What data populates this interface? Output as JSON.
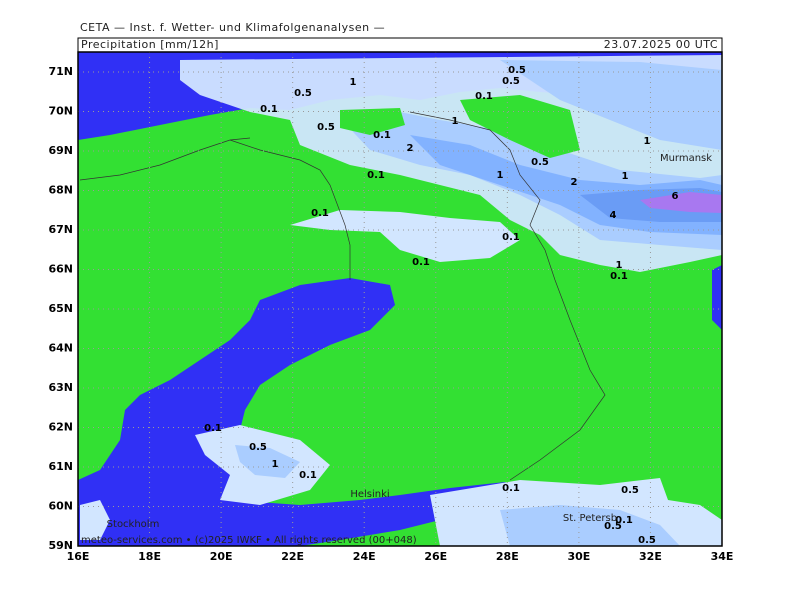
{
  "header": {
    "title": "CETA — Inst. f. Wetter- und Klimafolgenanalysen —",
    "subtitle": "Precipitation [mm/12h]",
    "date": "23.07.2025 00 UTC"
  },
  "footer": "meteo-services.com • (c)2025 IWKF • All rights reserved (00+048)",
  "lat_ticks": [
    {
      "value": 71,
      "label": "71N"
    },
    {
      "value": 70,
      "label": "70N"
    },
    {
      "value": 69,
      "label": "69N"
    },
    {
      "value": 68,
      "label": "68N"
    },
    {
      "value": 67,
      "label": "67N"
    },
    {
      "value": 66,
      "label": "66N"
    },
    {
      "value": 65,
      "label": "65N"
    },
    {
      "value": 64,
      "label": "64N"
    },
    {
      "value": 63,
      "label": "63N"
    },
    {
      "value": 62,
      "label": "62N"
    },
    {
      "value": 61,
      "label": "61N"
    },
    {
      "value": 60,
      "label": "60N"
    },
    {
      "value": 59,
      "label": "59N"
    }
  ],
  "lon_ticks": [
    {
      "value": 16,
      "label": "16E"
    },
    {
      "value": 18,
      "label": "18E"
    },
    {
      "value": 20,
      "label": "20E"
    },
    {
      "value": 22,
      "label": "22E"
    },
    {
      "value": 24,
      "label": "24E"
    },
    {
      "value": 26,
      "label": "26E"
    },
    {
      "value": 28,
      "label": "28E"
    },
    {
      "value": 30,
      "label": "30E"
    },
    {
      "value": 32,
      "label": "32E"
    },
    {
      "value": 34,
      "label": "34E"
    }
  ],
  "cities": [
    "Murmansk",
    "Helsinki",
    "Stockholm",
    "St. Petersb"
  ],
  "contour_labels": [
    "0.5",
    "0.5",
    "1",
    "0.5",
    "0.1",
    "0.1",
    "1",
    "0.5",
    "0.1",
    "2",
    "1",
    "0.5",
    "1",
    "0.1",
    "2",
    "1",
    "6",
    "4",
    "0.1",
    "0.1",
    "0.1",
    "1",
    "0.1",
    "0.1",
    "0.5",
    "1",
    "0.1",
    "0.1",
    "0.5",
    "0.1",
    "0.5",
    "0.5"
  ]
}
